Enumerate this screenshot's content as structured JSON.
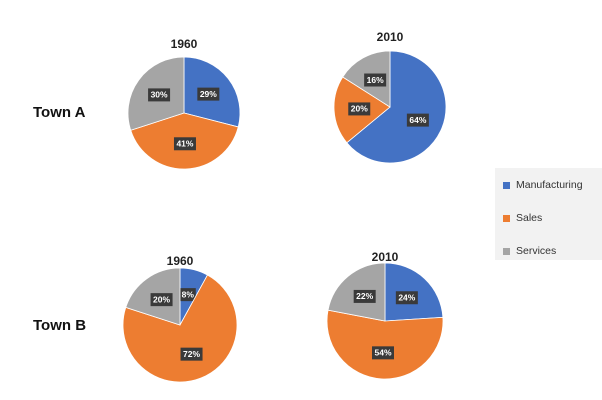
{
  "colors": {
    "Manufacturing": "#4472c4",
    "Sales": "#ed7d31",
    "Services": "#a5a5a5"
  },
  "legend": {
    "position": "right",
    "items": [
      "Manufacturing",
      "Sales",
      "Services"
    ]
  },
  "chart_data": [
    {
      "type": "pie",
      "town": "Town A",
      "title": "1960",
      "categories": [
        "Manufacturing",
        "Sales",
        "Services"
      ],
      "values": [
        29,
        41,
        30
      ],
      "labels": [
        "29%",
        "41%",
        "30%"
      ]
    },
    {
      "type": "pie",
      "town": "Town A",
      "title": "2010",
      "categories": [
        "Manufacturing",
        "Sales",
        "Services"
      ],
      "values": [
        64,
        20,
        16
      ],
      "labels": [
        "64%",
        "20%",
        "16%"
      ]
    },
    {
      "type": "pie",
      "town": "Town B",
      "title": "1960",
      "categories": [
        "Manufacturing",
        "Sales",
        "Services"
      ],
      "values": [
        8,
        72,
        20
      ],
      "labels": [
        "8%",
        "72%",
        "20%"
      ]
    },
    {
      "type": "pie",
      "town": "Town B",
      "title": "2010",
      "categories": [
        "Manufacturing",
        "Sales",
        "Services"
      ],
      "values": [
        24,
        54,
        22
      ],
      "labels": [
        "24%",
        "54%",
        "22%"
      ]
    }
  ],
  "rows": [
    "Town A",
    "Town B"
  ]
}
